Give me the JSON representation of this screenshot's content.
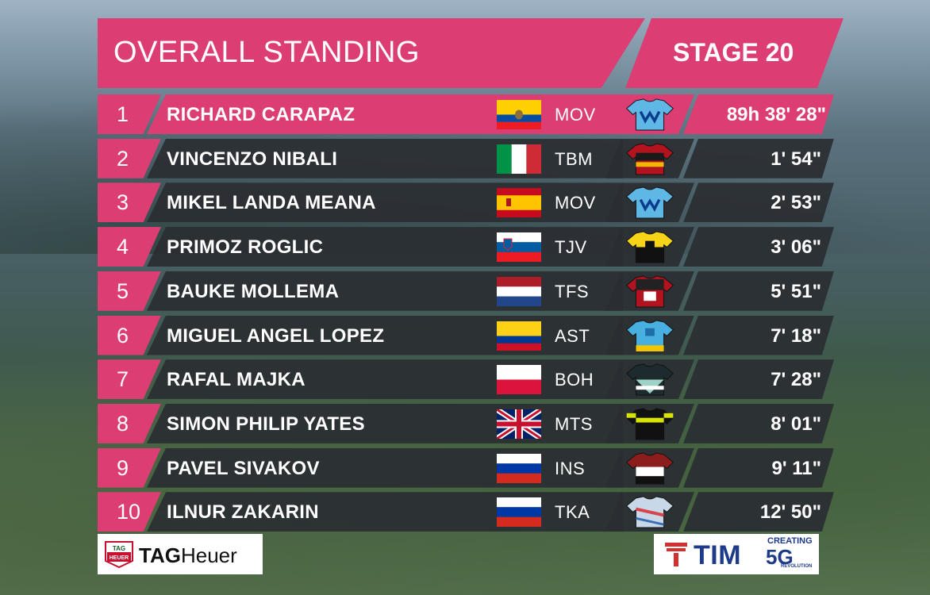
{
  "header": {
    "title": "OVERALL STANDING",
    "stage": "STAGE 20"
  },
  "standings": [
    {
      "pos": "1",
      "name": "RICHARD CARAPAZ",
      "flag": "ecuador",
      "team": "MOV",
      "jersey": "movistar",
      "time": "89h 38' 28\""
    },
    {
      "pos": "2",
      "name": "VINCENZO NIBALI",
      "flag": "italy",
      "team": "TBM",
      "jersey": "bahrain-merida",
      "time": "1' 54\""
    },
    {
      "pos": "3",
      "name": "MIKEL LANDA MEANA",
      "flag": "spain",
      "team": "MOV",
      "jersey": "movistar",
      "time": "2' 53\""
    },
    {
      "pos": "4",
      "name": "PRIMOZ ROGLIC",
      "flag": "slovenia",
      "team": "TJV",
      "jersey": "jumbo-visma",
      "time": "3' 06\""
    },
    {
      "pos": "5",
      "name": "BAUKE MOLLEMA",
      "flag": "netherlands",
      "team": "TFS",
      "jersey": "trek-segafredo",
      "time": "5' 51\""
    },
    {
      "pos": "6",
      "name": "MIGUEL ANGEL LOPEZ",
      "flag": "colombia",
      "team": "AST",
      "jersey": "astana",
      "time": "7' 18\""
    },
    {
      "pos": "7",
      "name": "RAFAL MAJKA",
      "flag": "poland",
      "team": "BOH",
      "jersey": "bora-hansgrohe",
      "time": "7' 28\""
    },
    {
      "pos": "8",
      "name": "SIMON PHILIP YATES",
      "flag": "united-kingdom",
      "team": "MTS",
      "jersey": "mitchelton-scott",
      "time": "8' 01\""
    },
    {
      "pos": "9",
      "name": "PAVEL SIVAKOV",
      "flag": "russia",
      "team": "INS",
      "jersey": "ineos",
      "time": "9' 11\""
    },
    {
      "pos": "10",
      "name": "ILNUR ZAKARIN",
      "flag": "russia",
      "team": "TKA",
      "jersey": "katusha",
      "time": "12' 50\""
    }
  ],
  "sponsors": {
    "left": {
      "name_part1": "TAG",
      "name_part2": "Heuer",
      "shield_top": "TAG",
      "shield_bottom": "HEUER"
    },
    "right": {
      "name": "TIM",
      "tagline_top": "CREATING",
      "tagline_main": "5G",
      "tagline_bottom": "REVOLUTION"
    }
  },
  "colors": {
    "accent": "#dc3e74",
    "band": "#2a2e32",
    "text": "#ffffff"
  }
}
